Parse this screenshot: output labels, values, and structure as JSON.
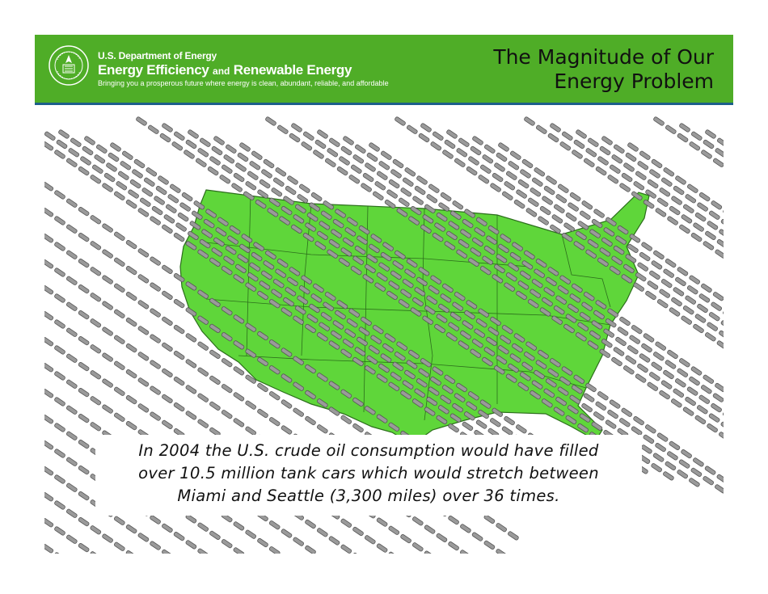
{
  "header": {
    "department": "U.S. Department of Energy",
    "office_part1": "Energy Efficiency",
    "office_and": "and",
    "office_part2": "Renewable Energy",
    "tagline": "Bringing you a prosperous future where energy is clean, abundant, reliable, and affordable",
    "title_line1": "The Magnitude of Our",
    "title_line2": "Energy Problem"
  },
  "caption": {
    "line1": "In 2004 the U.S. crude oil consumption would have filled",
    "line2": "over 10.5 million tank cars which would stretch between",
    "line3": "Miami and Seattle (3,300 miles) over 36 times."
  },
  "colors": {
    "header_green": "#4fad27",
    "header_rule": "#1d5f8a",
    "map_green": "#5fd63a",
    "tank_car": "#555555"
  },
  "icons": {
    "seal": "doe-seal-icon"
  }
}
